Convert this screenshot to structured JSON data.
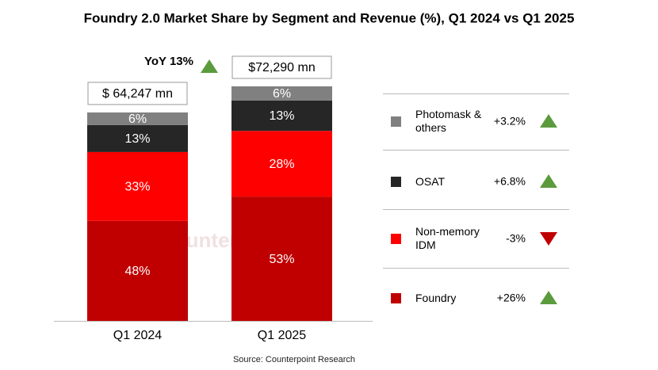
{
  "chart_data": {
    "type": "bar",
    "stacked": true,
    "title": "Foundry 2.0 Market Share by Segment and Revenue (%), Q1 2024 vs Q1 2025",
    "categories": [
      "Q1 2024",
      "Q1 2025"
    ],
    "totals": [
      {
        "value": 64247,
        "label": "$ 64,247 mn"
      },
      {
        "value": 72290,
        "label": "$72,290 mn"
      }
    ],
    "yoy": "YoY 13%",
    "series": [
      {
        "name": "Foundry",
        "color": "#c00000",
        "values": [
          48,
          53
        ],
        "value_labels": [
          "48%",
          "53%"
        ],
        "change": "+26%",
        "trend": "up"
      },
      {
        "name": "Non-memory IDM",
        "color": "#ff0000",
        "values": [
          33,
          28
        ],
        "value_labels": [
          "33%",
          "28%"
        ],
        "change": "-3%",
        "trend": "down"
      },
      {
        "name": "OSAT",
        "color": "#262626",
        "values": [
          13,
          13
        ],
        "value_labels": [
          "13%",
          "13%"
        ],
        "change": "+6.8%",
        "trend": "up"
      },
      {
        "name": "Photomask & others",
        "color": "#808080",
        "values": [
          6,
          6
        ],
        "value_labels": [
          "6%",
          "6%"
        ],
        "change": "+3.2%",
        "trend": "up"
      }
    ],
    "trend_colors": {
      "up": "#5b9b3d",
      "down": "#c00000"
    },
    "watermark": "Counterpoint",
    "source": "Source: Counterpoint Research"
  }
}
